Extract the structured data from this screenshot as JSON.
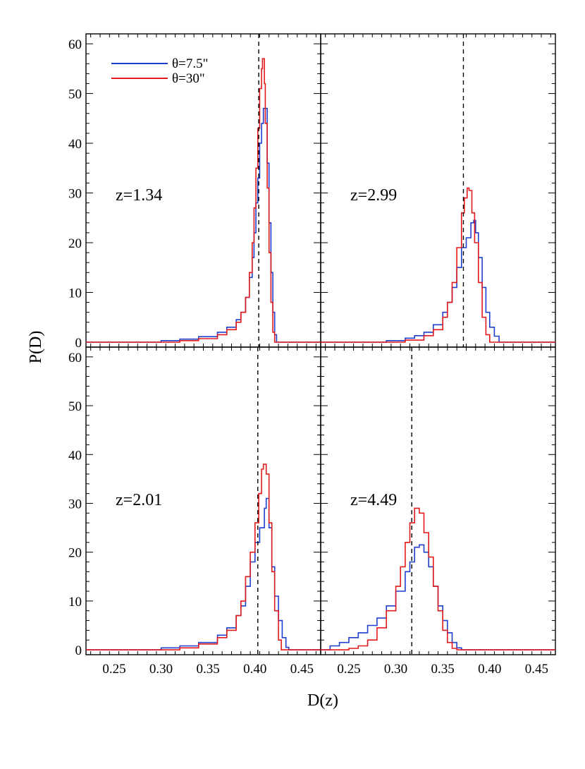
{
  "figure": {
    "xlabel": "D(z)",
    "ylabel": "P(D)"
  },
  "chart_data": [
    {
      "panel": "top-left",
      "type": "line",
      "annotation": "z=1.34",
      "legend": {
        "placement": "top-left",
        "entries": [
          "θ=7.5\"",
          "θ=30\""
        ]
      },
      "xlim": [
        0.22,
        0.47
      ],
      "ylim": [
        -1,
        62
      ],
      "xticks": [
        0.25,
        0.3,
        0.35,
        0.4,
        0.45
      ],
      "xtick_labels": [
        "",
        "",
        "",
        "",
        ""
      ],
      "yticks": [
        0,
        10,
        20,
        30,
        40,
        50,
        60
      ],
      "ytick_labels": [
        "0",
        "10",
        "20",
        "30",
        "40",
        "50",
        "60"
      ],
      "vline": 0.404,
      "series": [
        {
          "name": "θ=7.5\"",
          "color": "#1f3fcf",
          "points": [
            [
              0.22,
              0
            ],
            [
              0.28,
              0
            ],
            [
              0.3,
              0.3
            ],
            [
              0.32,
              0.6
            ],
            [
              0.34,
              1.1
            ],
            [
              0.36,
              2
            ],
            [
              0.37,
              3
            ],
            [
              0.38,
              4.5
            ],
            [
              0.385,
              6
            ],
            [
              0.39,
              9
            ],
            [
              0.394,
              13
            ],
            [
              0.397,
              17
            ],
            [
              0.399,
              22
            ],
            [
              0.401,
              28
            ],
            [
              0.403,
              33
            ],
            [
              0.405,
              40
            ],
            [
              0.407,
              44
            ],
            [
              0.409,
              47
            ],
            [
              0.411,
              47
            ],
            [
              0.413,
              36
            ],
            [
              0.415,
              24
            ],
            [
              0.417,
              14
            ],
            [
              0.419,
              6
            ],
            [
              0.421,
              1.5
            ],
            [
              0.423,
              0
            ],
            [
              0.47,
              0
            ]
          ]
        },
        {
          "name": "θ=30\"",
          "color": "#e31a1c",
          "points": [
            [
              0.22,
              0
            ],
            [
              0.3,
              0
            ],
            [
              0.32,
              0.3
            ],
            [
              0.34,
              0.7
            ],
            [
              0.36,
              1.5
            ],
            [
              0.37,
              2.5
            ],
            [
              0.38,
              4
            ],
            [
              0.385,
              6
            ],
            [
              0.39,
              9
            ],
            [
              0.394,
              14
            ],
            [
              0.397,
              20
            ],
            [
              0.399,
              27
            ],
            [
              0.401,
              35
            ],
            [
              0.403,
              43
            ],
            [
              0.405,
              51
            ],
            [
              0.407,
              55
            ],
            [
              0.408,
              57
            ],
            [
              0.41,
              52
            ],
            [
              0.411,
              44
            ],
            [
              0.413,
              31
            ],
            [
              0.415,
              18
            ],
            [
              0.417,
              8
            ],
            [
              0.419,
              2
            ],
            [
              0.421,
              0
            ],
            [
              0.47,
              0
            ]
          ]
        }
      ]
    },
    {
      "panel": "top-right",
      "type": "line",
      "annotation": "z=2.99",
      "xlim": [
        0.22,
        0.47
      ],
      "ylim": [
        -1,
        62
      ],
      "xticks": [
        0.25,
        0.3,
        0.35,
        0.4,
        0.45
      ],
      "xtick_labels": [
        "",
        "",
        "",
        "",
        ""
      ],
      "yticks": [
        0,
        10,
        20,
        30,
        40,
        50,
        60
      ],
      "ytick_labels": [
        "",
        "",
        "",
        "",
        "",
        "",
        ""
      ],
      "vline": 0.372,
      "series": [
        {
          "name": "θ=7.5\"",
          "color": "#1f3fcf",
          "points": [
            [
              0.22,
              0
            ],
            [
              0.27,
              0
            ],
            [
              0.29,
              0.3
            ],
            [
              0.31,
              0.8
            ],
            [
              0.32,
              1.3
            ],
            [
              0.33,
              2
            ],
            [
              0.34,
              3.5
            ],
            [
              0.35,
              6
            ],
            [
              0.355,
              8
            ],
            [
              0.36,
              11
            ],
            [
              0.365,
              15
            ],
            [
              0.37,
              19
            ],
            [
              0.375,
              21
            ],
            [
              0.38,
              24
            ],
            [
              0.383,
              24.5
            ],
            [
              0.385,
              22
            ],
            [
              0.388,
              17
            ],
            [
              0.392,
              11
            ],
            [
              0.396,
              6
            ],
            [
              0.4,
              3
            ],
            [
              0.405,
              1.2
            ],
            [
              0.41,
              0
            ],
            [
              0.47,
              0
            ]
          ]
        },
        {
          "name": "θ=30\"",
          "color": "#e31a1c",
          "points": [
            [
              0.22,
              0
            ],
            [
              0.29,
              0
            ],
            [
              0.31,
              0.4
            ],
            [
              0.33,
              1.3
            ],
            [
              0.34,
              2.5
            ],
            [
              0.35,
              5
            ],
            [
              0.355,
              8
            ],
            [
              0.36,
              12
            ],
            [
              0.365,
              19
            ],
            [
              0.37,
              26
            ],
            [
              0.373,
              29
            ],
            [
              0.376,
              31
            ],
            [
              0.378,
              30.5
            ],
            [
              0.381,
              26
            ],
            [
              0.384,
              20
            ],
            [
              0.388,
              12
            ],
            [
              0.392,
              5
            ],
            [
              0.396,
              1.5
            ],
            [
              0.4,
              0
            ],
            [
              0.47,
              0
            ]
          ]
        }
      ]
    },
    {
      "panel": "bottom-left",
      "type": "line",
      "annotation": "z=2.01",
      "xlim": [
        0.22,
        0.47
      ],
      "ylim": [
        -1,
        62
      ],
      "xticks": [
        0.25,
        0.3,
        0.35,
        0.4,
        0.45
      ],
      "xtick_labels": [
        "0.25",
        "0.30",
        "0.35",
        "0.40",
        "0.45"
      ],
      "yticks": [
        0,
        10,
        20,
        30,
        40,
        50,
        60
      ],
      "ytick_labels": [
        "0",
        "10",
        "20",
        "30",
        "40",
        "50",
        "60"
      ],
      "vline": 0.403,
      "series": [
        {
          "name": "θ=7.5\"",
          "color": "#1f3fcf",
          "points": [
            [
              0.22,
              0
            ],
            [
              0.28,
              0
            ],
            [
              0.3,
              0.4
            ],
            [
              0.32,
              0.8
            ],
            [
              0.34,
              1.5
            ],
            [
              0.36,
              3
            ],
            [
              0.37,
              4.5
            ],
            [
              0.38,
              7
            ],
            [
              0.385,
              9
            ],
            [
              0.39,
              13
            ],
            [
              0.395,
              18
            ],
            [
              0.4,
              22
            ],
            [
              0.405,
              25
            ],
            [
              0.41,
              29
            ],
            [
              0.412,
              31
            ],
            [
              0.415,
              25
            ],
            [
              0.418,
              17
            ],
            [
              0.421,
              11
            ],
            [
              0.425,
              6
            ],
            [
              0.429,
              2.5
            ],
            [
              0.433,
              0.5
            ],
            [
              0.436,
              0
            ],
            [
              0.47,
              0
            ]
          ]
        },
        {
          "name": "θ=30\"",
          "color": "#e31a1c",
          "points": [
            [
              0.22,
              0
            ],
            [
              0.3,
              0
            ],
            [
              0.32,
              0.4
            ],
            [
              0.34,
              1.2
            ],
            [
              0.36,
              2.5
            ],
            [
              0.37,
              4
            ],
            [
              0.38,
              7
            ],
            [
              0.385,
              10
            ],
            [
              0.39,
              15
            ],
            [
              0.395,
              20
            ],
            [
              0.4,
              26
            ],
            [
              0.404,
              32
            ],
            [
              0.407,
              37
            ],
            [
              0.409,
              38
            ],
            [
              0.412,
              36
            ],
            [
              0.415,
              26
            ],
            [
              0.418,
              16
            ],
            [
              0.421,
              8
            ],
            [
              0.425,
              2
            ],
            [
              0.428,
              0
            ],
            [
              0.47,
              0
            ]
          ]
        }
      ]
    },
    {
      "panel": "bottom-right",
      "type": "line",
      "annotation": "z=4.49",
      "xlim": [
        0.22,
        0.47
      ],
      "ylim": [
        -1,
        62
      ],
      "xticks": [
        0.25,
        0.3,
        0.35,
        0.4,
        0.45
      ],
      "xtick_labels": [
        "0.25",
        "0.30",
        "0.35",
        "0.40",
        "0.45"
      ],
      "yticks": [
        0,
        10,
        20,
        30,
        40,
        50,
        60
      ],
      "ytick_labels": [
        "",
        "",
        "",
        "",
        "",
        "",
        ""
      ],
      "vline": 0.317,
      "series": [
        {
          "name": "θ=7.5\"",
          "color": "#1f3fcf",
          "points": [
            [
              0.22,
              0
            ],
            [
              0.23,
              0.8
            ],
            [
              0.24,
              1.5
            ],
            [
              0.25,
              2.5
            ],
            [
              0.26,
              3.5
            ],
            [
              0.27,
              5
            ],
            [
              0.28,
              6.5
            ],
            [
              0.29,
              9
            ],
            [
              0.3,
              12
            ],
            [
              0.31,
              16
            ],
            [
              0.315,
              18
            ],
            [
              0.32,
              21
            ],
            [
              0.325,
              21.5
            ],
            [
              0.33,
              20
            ],
            [
              0.335,
              17
            ],
            [
              0.34,
              13
            ],
            [
              0.345,
              9
            ],
            [
              0.35,
              6
            ],
            [
              0.355,
              3.5
            ],
            [
              0.36,
              1.5
            ],
            [
              0.365,
              0.4
            ],
            [
              0.37,
              0
            ],
            [
              0.47,
              0
            ]
          ]
        },
        {
          "name": "θ=30\"",
          "color": "#e31a1c",
          "points": [
            [
              0.22,
              0
            ],
            [
              0.25,
              0.3
            ],
            [
              0.26,
              0.8
            ],
            [
              0.27,
              2
            ],
            [
              0.28,
              4.5
            ],
            [
              0.29,
              8
            ],
            [
              0.3,
              13
            ],
            [
              0.305,
              17
            ],
            [
              0.31,
              22
            ],
            [
              0.315,
              26
            ],
            [
              0.32,
              29
            ],
            [
              0.325,
              28
            ],
            [
              0.33,
              24
            ],
            [
              0.335,
              19
            ],
            [
              0.34,
              13
            ],
            [
              0.345,
              8
            ],
            [
              0.35,
              4
            ],
            [
              0.355,
              1.5
            ],
            [
              0.36,
              0.3
            ],
            [
              0.365,
              0
            ],
            [
              0.47,
              0
            ]
          ]
        }
      ]
    }
  ]
}
